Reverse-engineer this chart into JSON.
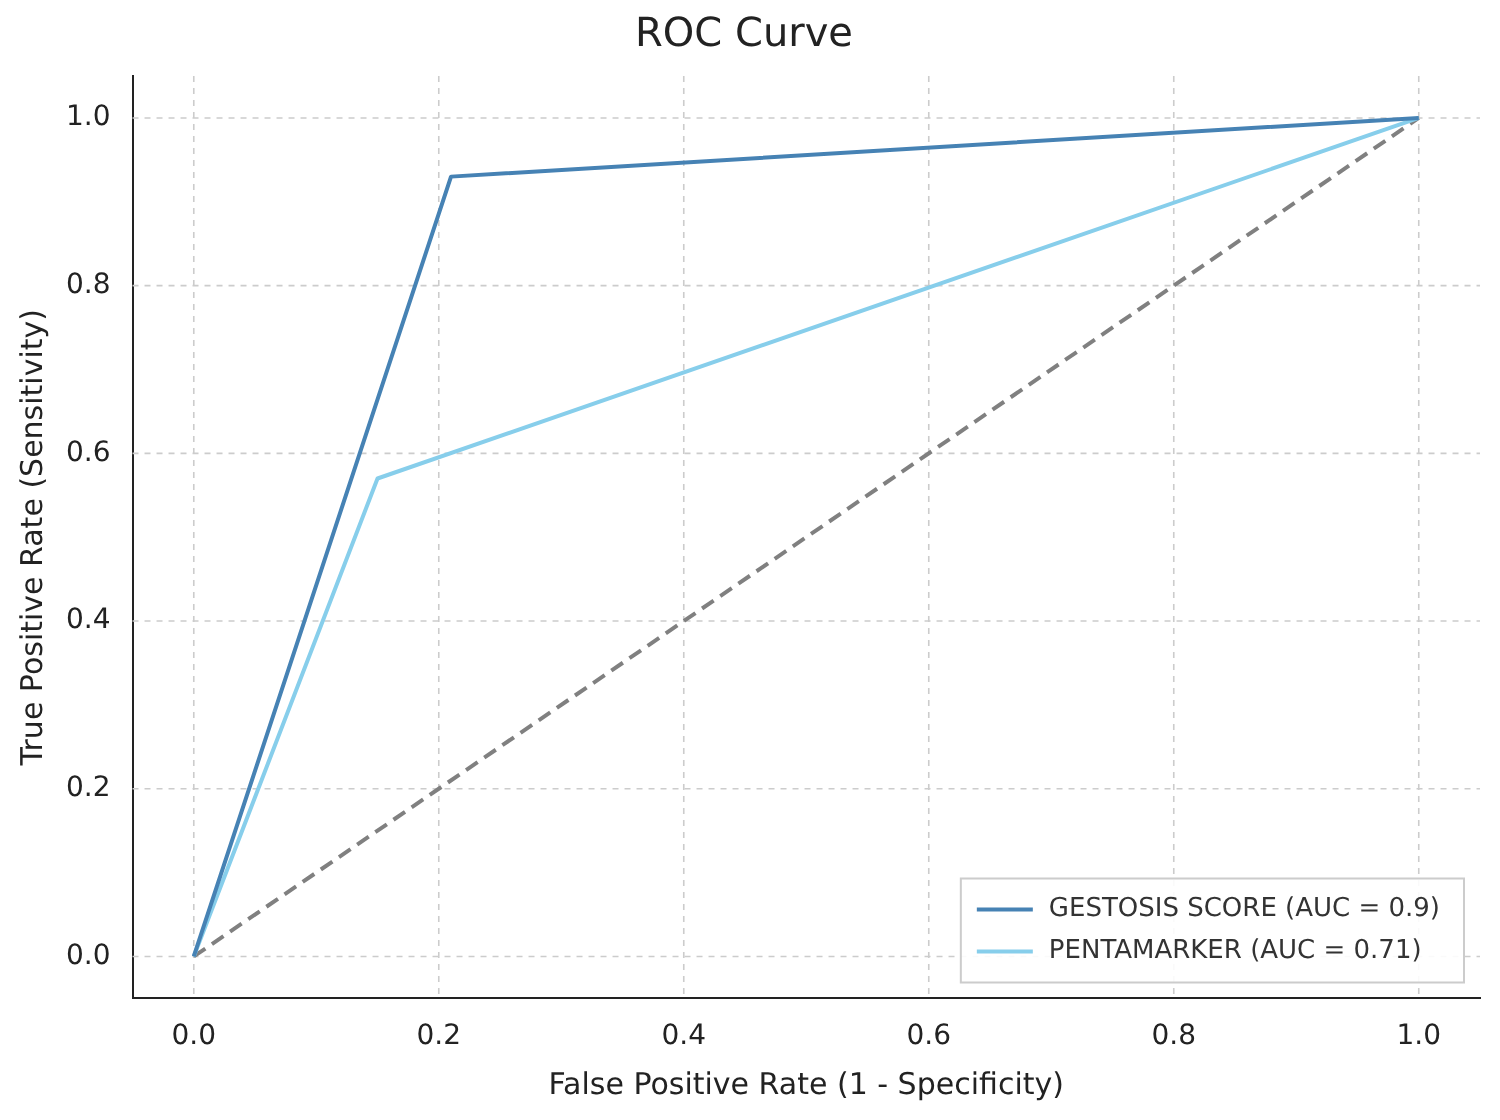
{
  "chart_data": {
    "type": "line",
    "title": "ROC Curve",
    "xlabel": "False Positive Rate (1 - Specificity)",
    "ylabel": "True Positive Rate (Sensitivity)",
    "xlim": [
      -0.05,
      1.05
    ],
    "ylim": [
      -0.05,
      1.05
    ],
    "xticks": [
      {
        "value": 0,
        "label": "0.0"
      },
      0.2,
      0.4,
      0.6,
      0.8,
      {
        "value": 1,
        "label": "1.0"
      }
    ],
    "yticks": [
      {
        "value": 0,
        "label": "0.0"
      },
      0.2,
      0.4,
      0.6,
      0.8,
      {
        "value": 1,
        "label": "1.0"
      }
    ],
    "grid": true,
    "legend": "bottom right",
    "series": [
      {
        "name": "GESTOSIS SCORE (AUC = 0.9)",
        "color": "#4682b4",
        "x": [
          0,
          0.21,
          1
        ],
        "values": [
          0,
          0.93,
          1
        ]
      },
      {
        "name": "PENTAMARKER (AUC = 0.71)",
        "color": "#87ceeb",
        "x": [
          0,
          0.15,
          1
        ],
        "values": [
          0,
          0.57,
          1
        ]
      },
      {
        "color": "#808080",
        "line_style": "dashed",
        "x": [
          0,
          1
        ],
        "values": [
          0,
          1
        ]
      }
    ]
  }
}
